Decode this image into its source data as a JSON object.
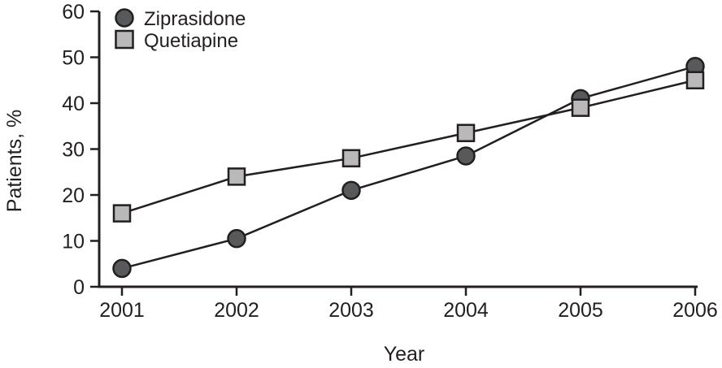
{
  "chart_data": {
    "type": "line",
    "title": "",
    "xlabel": "Year",
    "ylabel": "Patients, %",
    "x": [
      2001,
      2002,
      2003,
      2004,
      2005,
      2006
    ],
    "ylim": [
      0,
      60
    ],
    "yticks": [
      0,
      10,
      20,
      30,
      40,
      50,
      60
    ],
    "grid": false,
    "legend_position": "top-left-inside",
    "axis_color": "#231f20",
    "text_color": "#231f20",
    "background_color": "#ffffff",
    "series": [
      {
        "name": "Ziprasidone",
        "marker": "circle",
        "marker_fill": "#58595b",
        "marker_stroke": "#231f20",
        "line_color": "#231f20",
        "values": [
          4,
          10.5,
          21,
          28.5,
          41,
          48
        ]
      },
      {
        "name": "Quetiapine",
        "marker": "square",
        "marker_fill": "#b9b9b9",
        "marker_stroke": "#231f20",
        "line_color": "#231f20",
        "values": [
          16,
          24,
          28,
          33.5,
          39,
          45
        ]
      }
    ]
  }
}
